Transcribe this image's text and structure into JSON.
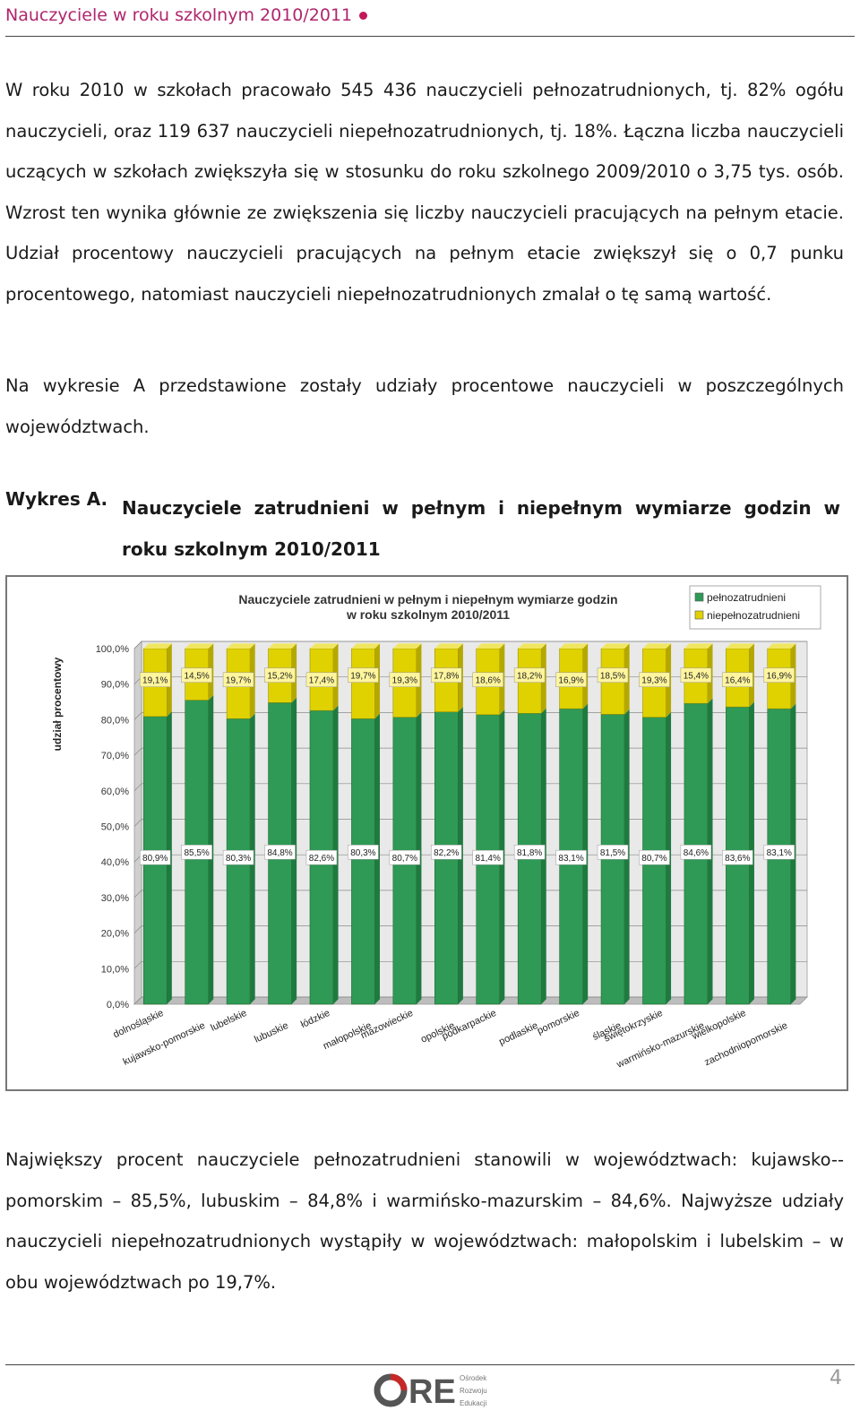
{
  "header": {
    "title": "Nauczyciele w roku szkolnym 2010/2011"
  },
  "paragraphs": {
    "p1a": "W roku 2010 w szkołach pracowało 545 436 nauczycieli pełnozatrudnionych, tj. 82% ogółu nauczycieli, oraz 119 637 nauczycieli niepełnozatrudnionych, tj. 18%. Łączna liczba nauczycieli uczących w szkołach zwiększyła się w stosunku do roku szkolnego 2009/2010 o 3,75 tys. osób.",
    "p1b": " Wzrost ten wynika głównie ze zwiększenia się liczby nauczycieli pracujących na pełnym etacie. Udział procentowy nauczycieli pracujących na pełnym etacie zwiększył się o 0,7 punku procentowego, natomiast nauczycieli niepełnozatrudnionych zmalał o tę samą wartość.",
    "p2": "Na wykresie A przedstawione zostały udziały procentowe nauczycieli w poszczególnych województwach.",
    "p3": "Największy procent nauczyciele pełnozatrudnieni stanowili w województwach: kujawsko--pomorskim – 85,5%, lubuskim – 84,8% i warmińsko-mazurskim – 84,6%. Najwyższe udziały nauczycieli niepełnozatrudnionych wystąpiły w województwach: małopolskim i lubelskim – w obu województwach po 19,7%."
  },
  "caption": {
    "label": "Wykres A.",
    "text": "Nauczyciele zatrudnieni w pełnym i niepełnym wymiarze godzin w roku szkolnym 2010/2011"
  },
  "chart_data": {
    "type": "bar",
    "stacked": true,
    "title": "Nauczyciele zatrudnieni w pełnym i niepełnym wymiarze godzin w roku szkolnym 2010/2011",
    "title_line1": "Nauczyciele zatrudnieni w pełnym i niepełnym wymiarze godzin",
    "title_line2": "w roku szkolnym 2010/2011",
    "ylabel": "udział procentowy",
    "ylim": [
      0,
      100
    ],
    "yticks": [
      "0,0%",
      "10,0%",
      "20,0%",
      "30,0%",
      "40,0%",
      "50,0%",
      "60,0%",
      "70,0%",
      "80,0%",
      "90,0%",
      "100,0%"
    ],
    "grid": true,
    "legend_position": "top-right",
    "categories": [
      "dolnośląskie",
      "kujawsko-pomorskie",
      "lubelskie",
      "lubuskie",
      "łódzkie",
      "małopolskie",
      "mazowieckie",
      "opolskie",
      "podkarpackie",
      "podlaskie",
      "pomorskie",
      "śląskie",
      "świętokrzyskie",
      "warmińsko-mazurskie",
      "wielkopolskie",
      "zachodniopomorskie"
    ],
    "series": [
      {
        "name": "pełnozatrudnieni",
        "color": "#2e9a55",
        "values": [
          80.9,
          85.5,
          80.3,
          84.8,
          82.6,
          80.3,
          80.7,
          82.2,
          81.4,
          81.8,
          83.1,
          81.5,
          80.7,
          84.6,
          83.6,
          83.1
        ],
        "labels": [
          "80,9%",
          "85,5%",
          "80,3%",
          "84,8%",
          "82,6%",
          "80,3%",
          "80,7%",
          "82,2%",
          "81,4%",
          "81,8%",
          "83,1%",
          "81,5%",
          "80,7%",
          "84,6%",
          "83,6%",
          "83,1%"
        ]
      },
      {
        "name": "niepełnozatrudnieni",
        "color": "#e0d200",
        "values": [
          19.1,
          14.5,
          19.7,
          15.2,
          17.4,
          19.7,
          19.3,
          17.8,
          18.6,
          18.2,
          16.9,
          18.5,
          19.3,
          15.4,
          16.4,
          16.9
        ],
        "labels": [
          "19,1%",
          "14,5%",
          "19,7%",
          "15,2%",
          "17,4%",
          "19,7%",
          "19,3%",
          "17,8%",
          "18,6%",
          "18,2%",
          "16,9%",
          "18,5%",
          "19,3%",
          "15,4%",
          "16,4%",
          "16,9%"
        ]
      }
    ]
  },
  "footer": {
    "logo_text": "ORE",
    "logo_sub": [
      "Ośrodek",
      "Rozwoju",
      "Edukacji"
    ],
    "page_number": "4"
  }
}
